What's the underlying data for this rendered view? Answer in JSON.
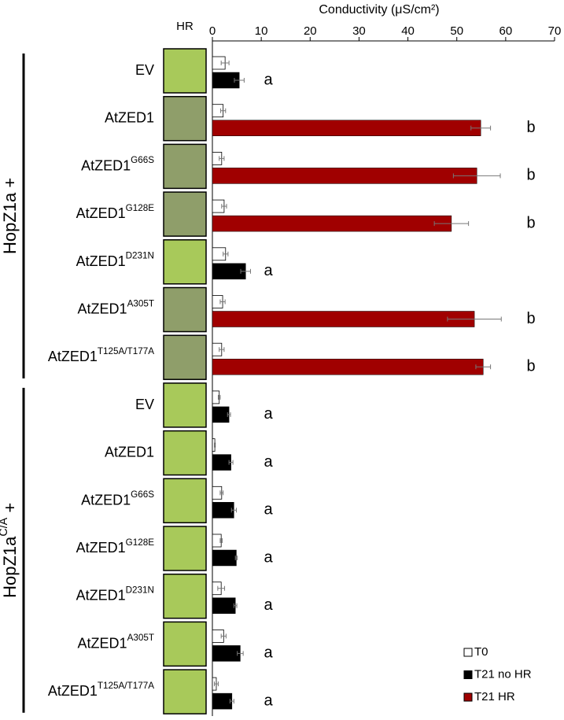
{
  "chart_data": {
    "type": "bar",
    "orientation": "horizontal",
    "x_label": "Conductivity (μS/cm²)",
    "image_header": "HR",
    "xlim": [
      0,
      70
    ],
    "xticks": [
      0,
      10,
      20,
      30,
      40,
      50,
      60,
      70
    ],
    "legend": "lower right",
    "groups": [
      {
        "label": {
          "base": "HopZ1a +"
        },
        "categories": [
          {
            "base": "EV"
          },
          {
            "base": "AtZED1"
          },
          {
            "base": "AtZED1",
            "sup": "G66S"
          },
          {
            "base": "AtZED1",
            "sup": "G128E"
          },
          {
            "base": "AtZED1",
            "sup": "D231N"
          },
          {
            "base": "AtZED1",
            "sup": "A305T"
          },
          {
            "base": "AtZED1",
            "sup": "T125A/T177A"
          }
        ]
      },
      {
        "label": {
          "base": "HopZ1a",
          "sup": "C/A",
          "suffix": " +"
        },
        "categories": [
          {
            "base": "EV"
          },
          {
            "base": "AtZED1"
          },
          {
            "base": "AtZED1",
            "sup": "G66S"
          },
          {
            "base": "AtZED1",
            "sup": "G128E"
          },
          {
            "base": "AtZED1",
            "sup": "D231N"
          },
          {
            "base": "AtZED1",
            "sup": "A305T"
          },
          {
            "base": "AtZED1",
            "sup": "T125A/T177A"
          }
        ]
      }
    ],
    "series": [
      {
        "name": "T0",
        "color": "#ffffff",
        "values": [
          2.6,
          2.2,
          1.9,
          2.4,
          2.7,
          2.1,
          1.9,
          1.4,
          0.5,
          1.9,
          1.8,
          1.8,
          2.3,
          0.8
        ],
        "errors": [
          0.8,
          0.5,
          0.5,
          0.5,
          0.5,
          0.5,
          0.5,
          0.2,
          0.1,
          0.3,
          0.2,
          0.7,
          0.5,
          0.4
        ]
      },
      {
        "name": "T21 no HR",
        "color": "#000000",
        "values": [
          5.5,
          null,
          null,
          null,
          6.8,
          null,
          null,
          3.4,
          3.8,
          4.4,
          4.9,
          4.7,
          5.7,
          4.0
        ],
        "errors": [
          1.0,
          null,
          null,
          null,
          1.0,
          null,
          null,
          0.3,
          0.4,
          0.5,
          0.2,
          0.3,
          0.6,
          0.4
        ]
      },
      {
        "name": "T21 HR",
        "color": "#a00000",
        "values": [
          null,
          54.9,
          54.1,
          48.9,
          null,
          53.6,
          55.4,
          null,
          null,
          null,
          null,
          null,
          null,
          null
        ],
        "errors": [
          null,
          2.0,
          4.8,
          3.5,
          null,
          5.5,
          1.5,
          null,
          null,
          null,
          null,
          null,
          null,
          null
        ]
      }
    ],
    "letters": [
      "a",
      "b",
      "b",
      "b",
      "a",
      "b",
      "b",
      "a",
      "a",
      "a",
      "a",
      "a",
      "a",
      "a"
    ]
  }
}
